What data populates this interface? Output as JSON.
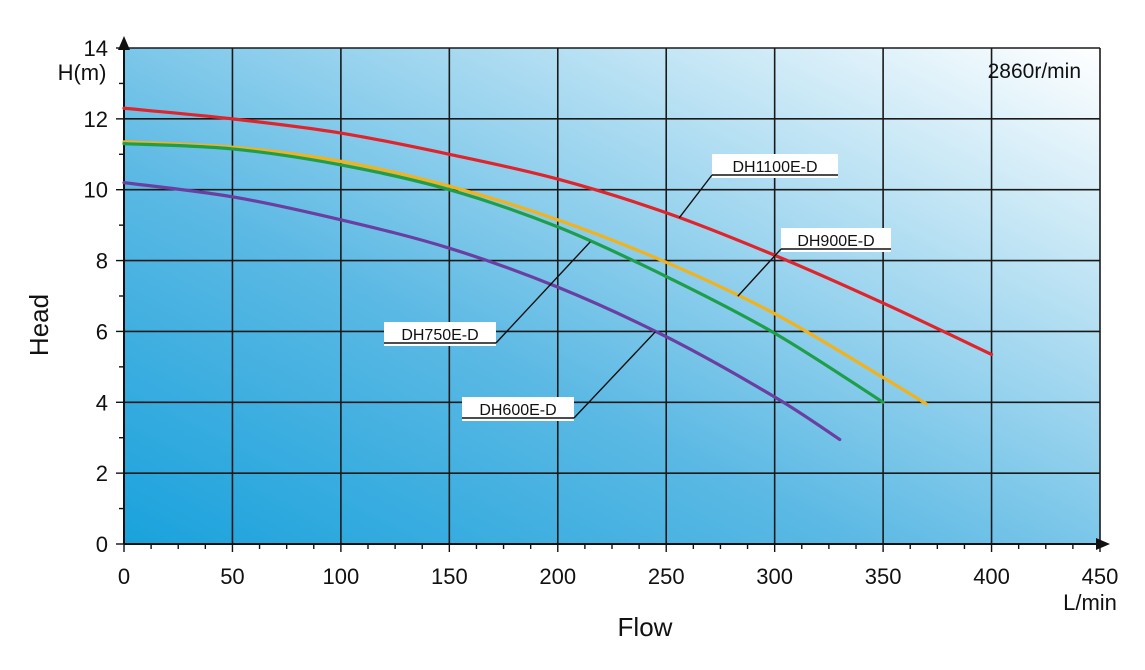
{
  "chart_data": {
    "type": "line",
    "title": "",
    "xlabel": "Flow",
    "ylabel": "Head",
    "x_unit": "L/min",
    "y_unit": "H(m)",
    "speed_note": "2860r/min",
    "xlim": [
      0,
      450
    ],
    "ylim": [
      0,
      14
    ],
    "x_ticks": [
      0,
      50,
      100,
      150,
      200,
      250,
      300,
      350,
      400,
      450
    ],
    "y_ticks": [
      0,
      2,
      4,
      6,
      8,
      10,
      12,
      14
    ],
    "x_tick_labels": [
      "0",
      "50",
      "100",
      "150",
      "200",
      "250",
      "300",
      "350",
      "400",
      "450"
    ],
    "y_tick_labels": [
      "0",
      "2",
      "4",
      "6",
      "8",
      "10",
      "12",
      "14"
    ],
    "grid": true,
    "series": [
      {
        "name": "DH1100E-D",
        "color": "#e0242b",
        "x": [
          0,
          50,
          100,
          150,
          200,
          250,
          300,
          350,
          400
        ],
        "y": [
          12.3,
          12.0,
          11.6,
          11.0,
          10.3,
          9.35,
          8.15,
          6.8,
          5.35
        ]
      },
      {
        "name": "DH900E-D",
        "color": "#f2b21c",
        "x": [
          0,
          50,
          100,
          150,
          200,
          250,
          300,
          350,
          370
        ],
        "y": [
          11.35,
          11.2,
          10.8,
          10.1,
          9.15,
          7.95,
          6.5,
          4.7,
          3.95
        ]
      },
      {
        "name": "DH750E-D",
        "color": "#1f9e4a",
        "x": [
          0,
          50,
          100,
          150,
          200,
          250,
          300,
          350
        ],
        "y": [
          11.3,
          11.15,
          10.7,
          10.0,
          8.95,
          7.55,
          5.95,
          4.0
        ]
      },
      {
        "name": "DH600E-D",
        "color": "#6a3fa0",
        "x": [
          0,
          50,
          100,
          150,
          200,
          250,
          300,
          330
        ],
        "y": [
          10.2,
          9.8,
          9.15,
          8.35,
          7.25,
          5.85,
          4.15,
          2.95
        ]
      }
    ],
    "annotations": [
      {
        "text": "DH1100E-D",
        "series": "DH1100E-D"
      },
      {
        "text": "DH900E-D",
        "series": "DH900E-D"
      },
      {
        "text": "DH750E-D",
        "series": "DH750E-D"
      },
      {
        "text": "DH600E-D",
        "series": "DH600E-D"
      }
    ]
  },
  "colors": {
    "gradient_dark": "#1aa2dc",
    "gradient_light": "#ffffff",
    "grid": "#1a1a1a"
  }
}
